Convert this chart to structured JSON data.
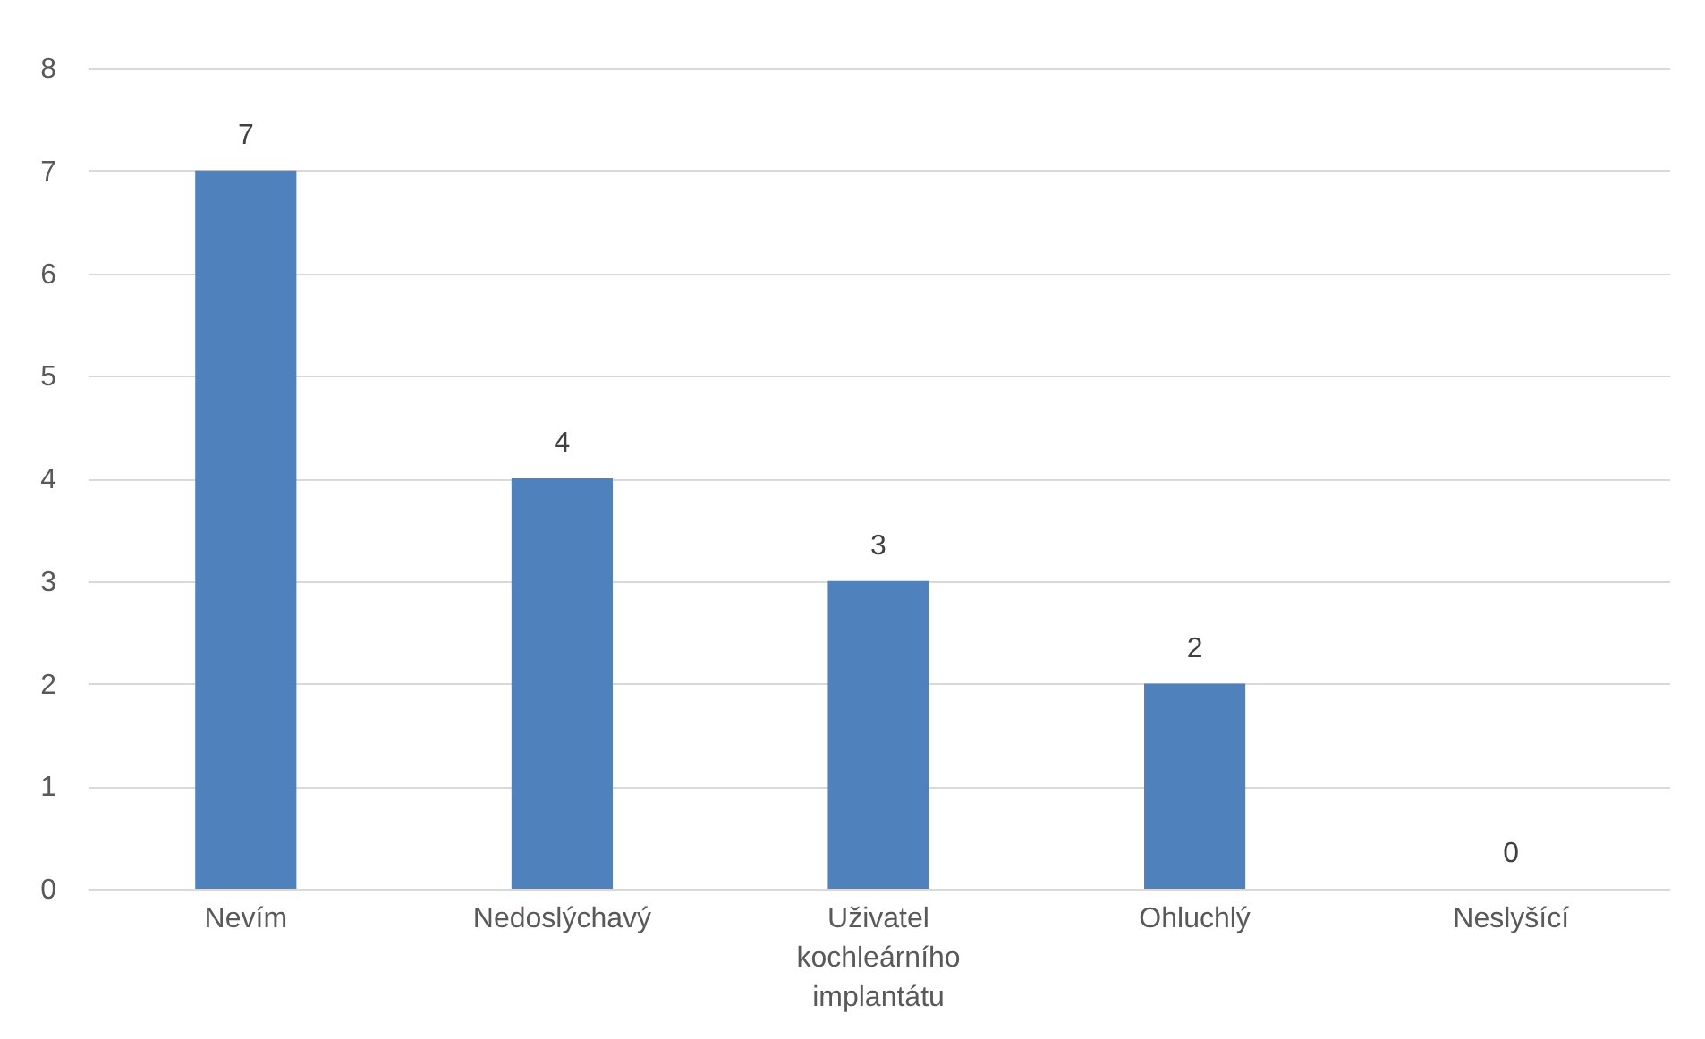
{
  "chart_data": {
    "type": "bar",
    "categories": [
      "Nevím",
      "Nedoslýchavý",
      "Uživatel kochleárního implantátu",
      "Ohluchlý",
      "Neslyšící"
    ],
    "values": [
      7,
      4,
      3,
      2,
      0
    ],
    "color": "#4f81bd",
    "ylim": [
      0,
      8
    ],
    "yticks": [
      0,
      1,
      2,
      3,
      4,
      5,
      6,
      7,
      8
    ],
    "grid": "y",
    "data_labels": true
  }
}
